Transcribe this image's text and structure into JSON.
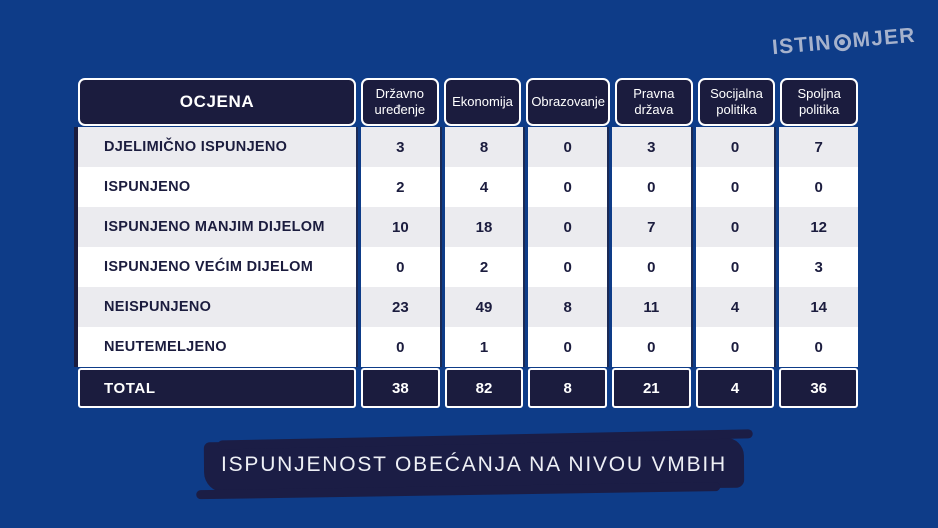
{
  "logo": {
    "text_left": "ISTIN",
    "text_right": "MJER",
    "icon": "istinomjer-o-icon"
  },
  "chart_data": {
    "type": "table",
    "title": "ISPUNJENOST OBEĆANJA NA NIVOU VMBIH",
    "columns": [
      "OCJENA",
      "Državno uređenje",
      "Ekonomija",
      "Obrazovanje",
      "Pravna država",
      "Socijalna politika",
      "Spoljna politika"
    ],
    "rows": [
      {
        "label": "DJELIMIČNO ISPUNJENO",
        "values": [
          3,
          8,
          0,
          3,
          0,
          7
        ]
      },
      {
        "label": "ISPUNJENO",
        "values": [
          2,
          4,
          0,
          0,
          0,
          0
        ]
      },
      {
        "label": "ISPUNJENO MANJIM DIJELOM",
        "values": [
          10,
          18,
          0,
          7,
          0,
          12
        ]
      },
      {
        "label": "ISPUNJENO VEĆIM DIJELOM",
        "values": [
          0,
          2,
          0,
          0,
          0,
          3
        ]
      },
      {
        "label": "NEISPUNJENO",
        "values": [
          23,
          49,
          8,
          11,
          4,
          14
        ]
      },
      {
        "label": "NEUTEMELJENO",
        "values": [
          0,
          1,
          0,
          0,
          0,
          0
        ]
      }
    ],
    "total": {
      "label": "TOTAL",
      "values": [
        38,
        82,
        8,
        21,
        4,
        36
      ]
    }
  },
  "colors": {
    "background": "#0e3c88",
    "navy": "#1b1c3e",
    "row_alt_gray": "#ebebef",
    "row_white": "#ffffff",
    "logo": "#a6b2cc",
    "banner": "#1b1d45",
    "banner_text": "#eef0f6"
  }
}
